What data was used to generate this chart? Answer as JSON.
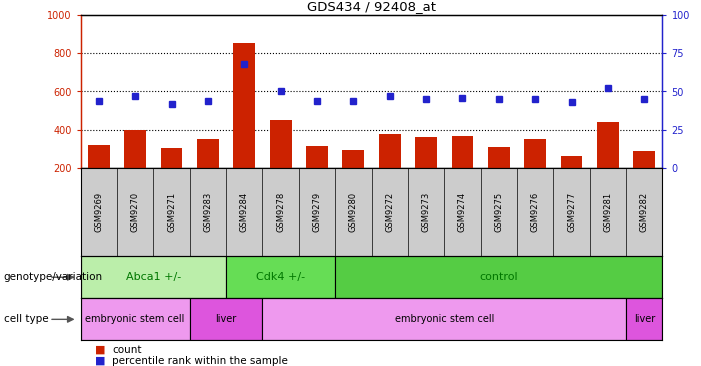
{
  "title": "GDS434 / 92408_at",
  "samples": [
    "GSM9269",
    "GSM9270",
    "GSM9271",
    "GSM9283",
    "GSM9284",
    "GSM9278",
    "GSM9279",
    "GSM9280",
    "GSM9272",
    "GSM9273",
    "GSM9274",
    "GSM9275",
    "GSM9276",
    "GSM9277",
    "GSM9281",
    "GSM9282"
  ],
  "counts": [
    320,
    400,
    305,
    355,
    850,
    450,
    315,
    295,
    380,
    365,
    370,
    310,
    355,
    265,
    440,
    290
  ],
  "percentiles": [
    44,
    47,
    42,
    44,
    68,
    50,
    44,
    44,
    47,
    45,
    46,
    45,
    45,
    43,
    52,
    45
  ],
  "ylim_left": [
    200,
    1000
  ],
  "ylim_right": [
    0,
    100
  ],
  "yticks_left": [
    200,
    400,
    600,
    800,
    1000
  ],
  "yticks_right": [
    0,
    25,
    50,
    75,
    100
  ],
  "bar_color": "#cc2200",
  "dot_color": "#2222cc",
  "bg_color": "#ffffff",
  "ax_bg_color": "#ffffff",
  "genotype_groups": [
    {
      "label": "Abca1 +/-",
      "start": 0,
      "end": 4,
      "color": "#bbeeaa"
    },
    {
      "label": "Cdk4 +/-",
      "start": 4,
      "end": 7,
      "color": "#66dd55"
    },
    {
      "label": "control",
      "start": 7,
      "end": 16,
      "color": "#55cc44"
    }
  ],
  "celltype_groups": [
    {
      "label": "embryonic stem cell",
      "start": 0,
      "end": 3,
      "color": "#ee99ee"
    },
    {
      "label": "liver",
      "start": 3,
      "end": 5,
      "color": "#dd55dd"
    },
    {
      "label": "embryonic stem cell",
      "start": 5,
      "end": 15,
      "color": "#ee99ee"
    },
    {
      "label": "liver",
      "start": 15,
      "end": 16,
      "color": "#dd55dd"
    }
  ],
  "legend_count_label": "count",
  "legend_pct_label": "percentile rank within the sample",
  "genotype_label": "genotype/variation",
  "celltype_label": "cell type",
  "label_fontsize": 8,
  "tick_fontsize": 7,
  "sample_fontsize": 6,
  "genotype_text_color": "#007700",
  "celltype_text_color": "#000000"
}
